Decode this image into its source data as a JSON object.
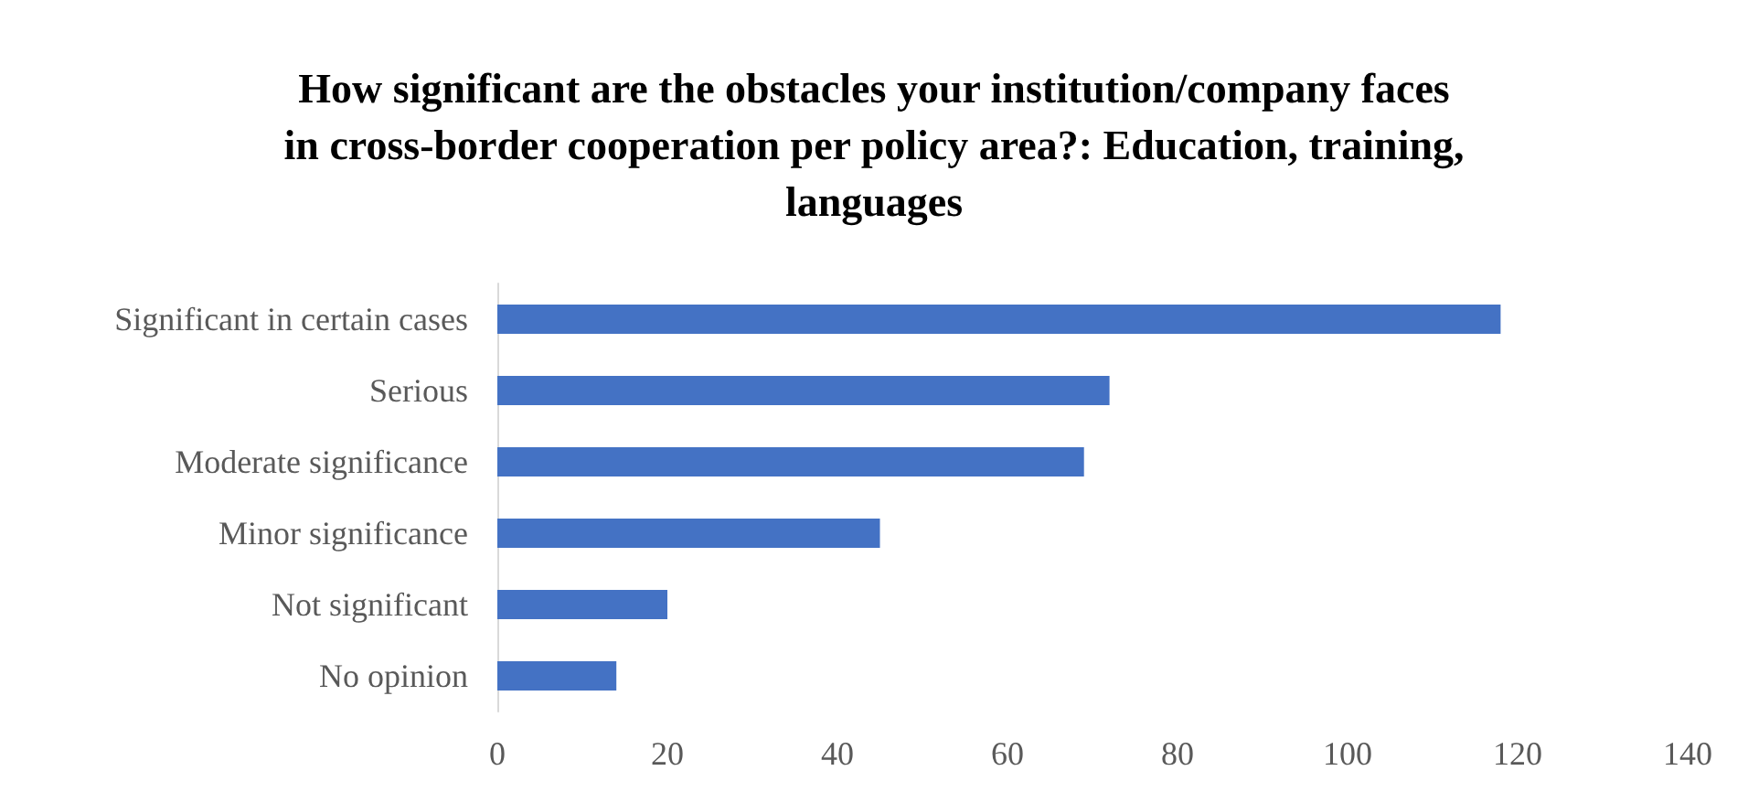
{
  "chart_data": {
    "type": "bar",
    "orientation": "horizontal",
    "title": "How significant are the obstacles your institution/company faces\nin cross-border cooperation per policy area?: Education, training,\nlanguages",
    "categories": [
      "Significant in certain cases",
      "Serious",
      "Moderate significance",
      "Minor significance",
      "Not significant",
      "No opinion"
    ],
    "values": [
      118,
      72,
      69,
      45,
      20,
      14
    ],
    "color": "#4472c4",
    "xlim": [
      0,
      140
    ],
    "xticks": [
      0,
      20,
      40,
      60,
      80,
      100,
      120,
      140
    ]
  }
}
